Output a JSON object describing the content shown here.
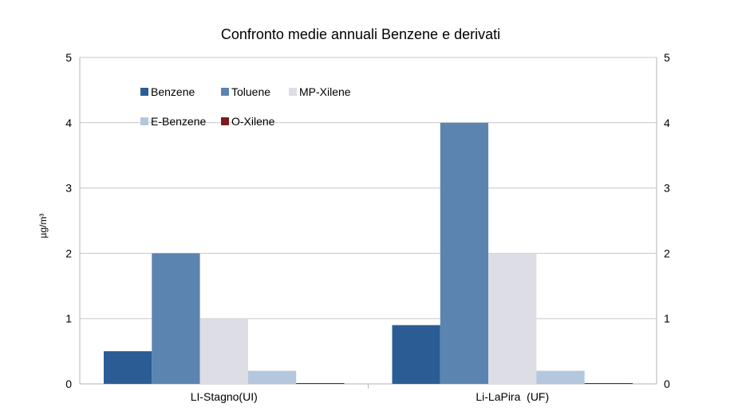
{
  "chart_data": {
    "type": "bar",
    "title": "Confronto medie annuali Benzene e derivati",
    "ylabel": "µg/m³",
    "xlabel": "",
    "ylim": [
      0,
      5
    ],
    "yticks": [
      "0",
      "1",
      "2",
      "3",
      "4",
      "5"
    ],
    "categories": [
      "LI-Stagno(UI)",
      "Li-LaPira  (UF)"
    ],
    "grid": true,
    "legend_position": "top-left",
    "series": [
      {
        "name": "Benzene",
        "color": "#2b5d94",
        "values": [
          0.5,
          0.9
        ]
      },
      {
        "name": "Toluene",
        "color": "#5b84b1",
        "values": [
          2.0,
          4.0
        ]
      },
      {
        "name": "MP-Xilene",
        "color": "#dddde6",
        "values": [
          1.0,
          2.0
        ]
      },
      {
        "name": "E-Benzene",
        "color": "#b4c7dc",
        "values": [
          0.2,
          0.2
        ]
      },
      {
        "name": "O-Xilene",
        "color": "#7a1c1c",
        "values": [
          0.01,
          0.01
        ]
      }
    ]
  }
}
